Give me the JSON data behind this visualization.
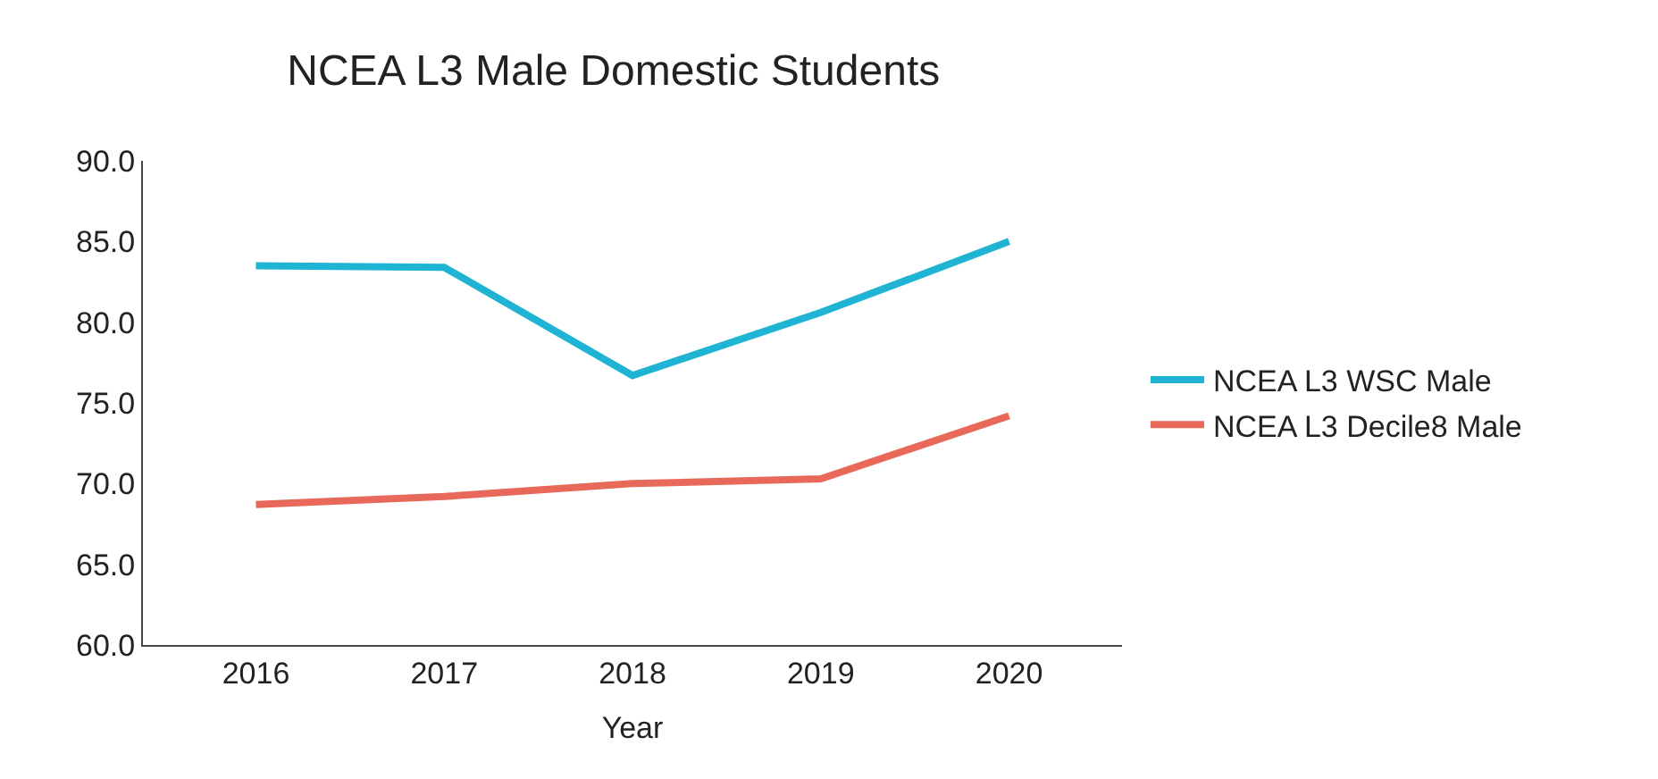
{
  "chart_data": {
    "type": "line",
    "title": "NCEA L3 Male Domestic Students",
    "xlabel": "Year",
    "categories": [
      "2016",
      "2017",
      "2018",
      "2019",
      "2020"
    ],
    "series": [
      {
        "name": "NCEA L3 WSC Male",
        "color": "#1fb4d4",
        "values": [
          83.5,
          83.4,
          76.7,
          80.6,
          85.0
        ]
      },
      {
        "name": "NCEA L3 Decile8 Male",
        "color": "#e8685a",
        "values": [
          68.7,
          69.2,
          70.0,
          70.3,
          74.2
        ]
      }
    ],
    "ylim": [
      60,
      90
    ],
    "yticks": [
      {
        "value": 60,
        "label": "60.0"
      },
      {
        "value": 65,
        "label": "65.0"
      },
      {
        "value": 70,
        "label": "70.0"
      },
      {
        "value": 75,
        "label": "75.0"
      },
      {
        "value": 80,
        "label": "80.0"
      },
      {
        "value": 85,
        "label": "85.0"
      },
      {
        "value": 90,
        "label": "90.0"
      }
    ],
    "legend": "right",
    "marker": "none",
    "line_style": "solid"
  }
}
